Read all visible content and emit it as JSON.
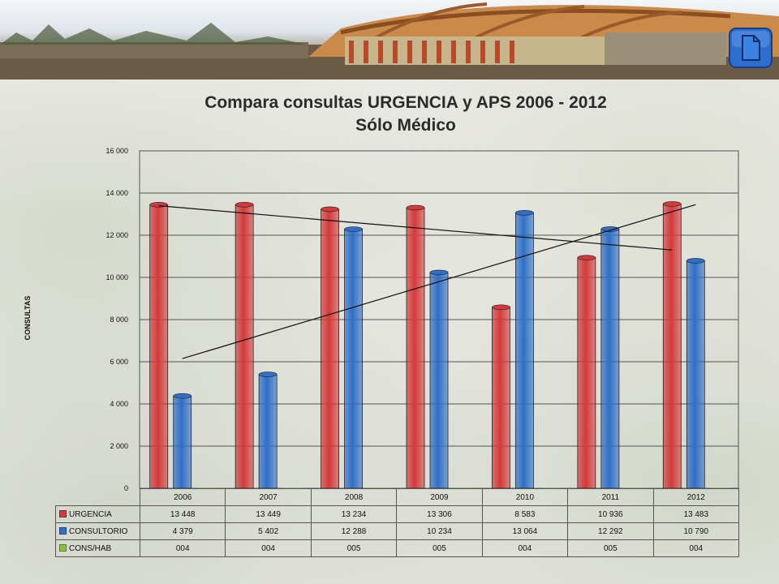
{
  "colors": {
    "urgencia": "#d33a3a",
    "consultorio": "#2f6fc7",
    "cons_hab": "#8fbf3f",
    "axis": "#333333"
  },
  "icons": {
    "document": "document-icon"
  },
  "chart_data": {
    "type": "bar",
    "title": "Compara consultas URGENCIA y  APS 2006 - 2012",
    "subtitle": "Sólo Médico",
    "ylabel": "CONSULTAS",
    "xlabel": "",
    "ylim": [
      0,
      16000
    ],
    "yticks": [
      0,
      2000,
      4000,
      6000,
      8000,
      10000,
      12000,
      14000,
      16000
    ],
    "ytick_labels": [
      "0",
      "2 000",
      "4 000",
      "6 000",
      "8 000",
      "10 000",
      "12 000",
      "14 000",
      "16 000"
    ],
    "grid": true,
    "categories": [
      "2006",
      "2007",
      "2008",
      "2009",
      "2010",
      "2011",
      "2012"
    ],
    "series": [
      {
        "name": "URGENCIA",
        "values": [
          13448,
          13449,
          13234,
          13306,
          8583,
          10936,
          13483
        ],
        "labels": [
          "13 448",
          "13 449",
          "13 234",
          "13 306",
          "8 583",
          "10 936",
          "13 483"
        ]
      },
      {
        "name": "CONSULTORIO",
        "values": [
          4379,
          5402,
          12288,
          10234,
          13064,
          12292,
          10790
        ],
        "labels": [
          "4 379",
          "5 402",
          "12 288",
          "10 234",
          "13 064",
          "12 292",
          "10 790"
        ]
      },
      {
        "name": "CONS/HAB",
        "values": [
          4,
          4,
          5,
          5,
          4,
          5,
          4
        ],
        "labels": [
          "004",
          "004",
          "005",
          "005",
          "004",
          "005",
          "004"
        ]
      }
    ],
    "trendlines": [
      {
        "series": "URGENCIA",
        "start": 13400,
        "end": 11300
      },
      {
        "series": "CONSULTORIO",
        "start": 6150,
        "end": 13450
      }
    ],
    "legend": "data-table"
  }
}
